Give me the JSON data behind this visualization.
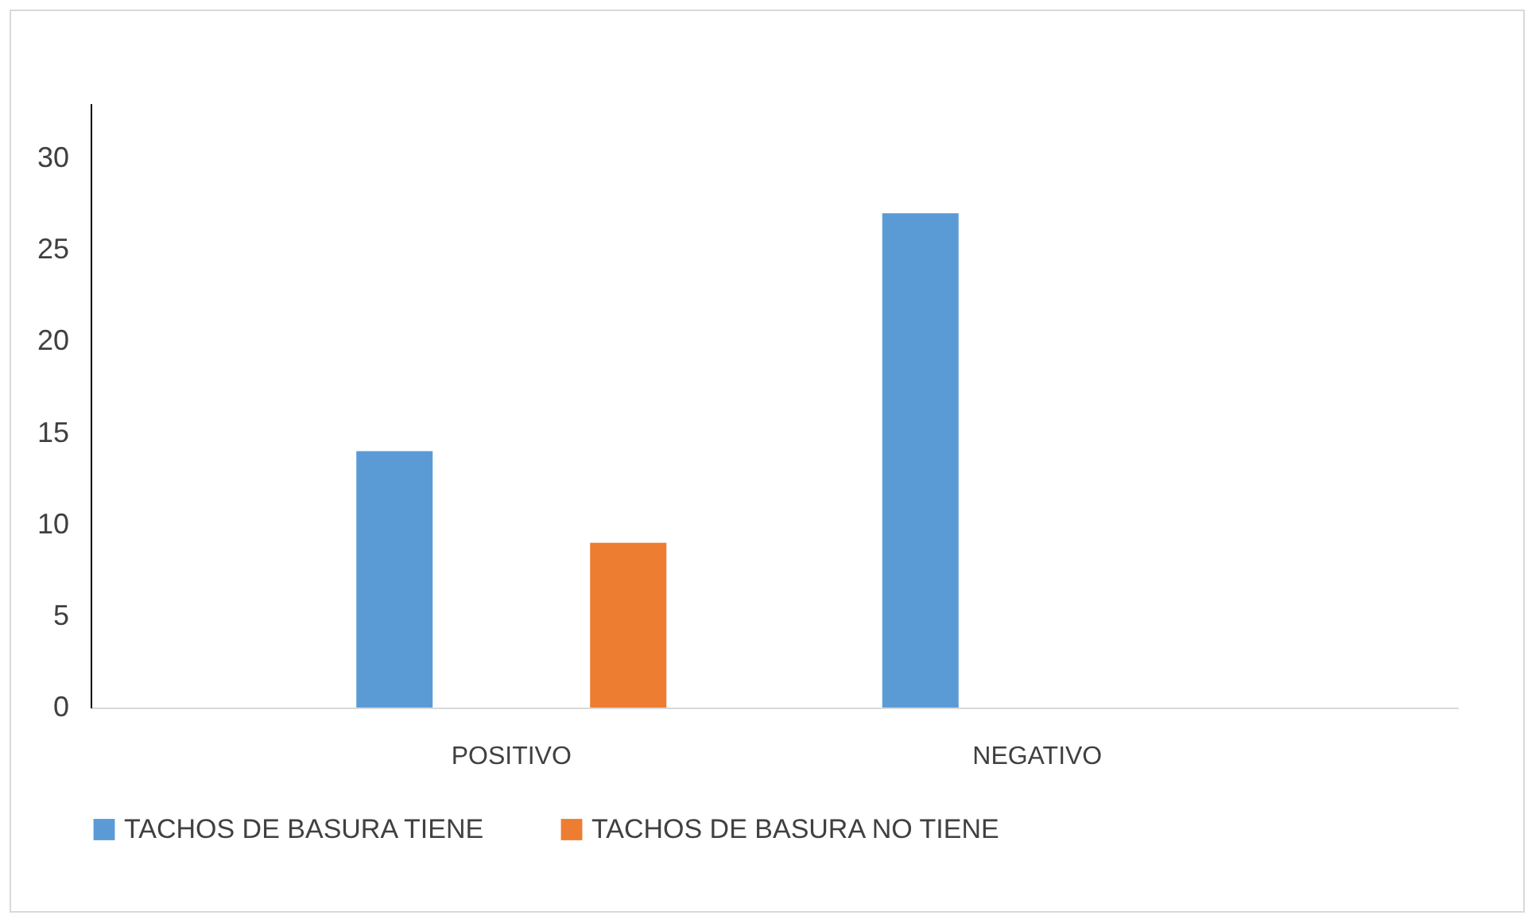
{
  "chart_data": {
    "type": "bar",
    "categories": [
      "POSITIVO",
      "NEGATIVO"
    ],
    "series": [
      {
        "name": "TACHOS DE BASURA  TIENE",
        "color": "#5b9bd5",
        "values": [
          14,
          27
        ]
      },
      {
        "name": "TACHOS DE BASURA  NO TIENE",
        "color": "#ed7d31",
        "values": [
          9,
          0
        ]
      }
    ],
    "ylim": [
      0,
      33
    ],
    "yticks": [
      0,
      5,
      10,
      15,
      20,
      25,
      30
    ],
    "grid": false,
    "legend": "bottom"
  }
}
